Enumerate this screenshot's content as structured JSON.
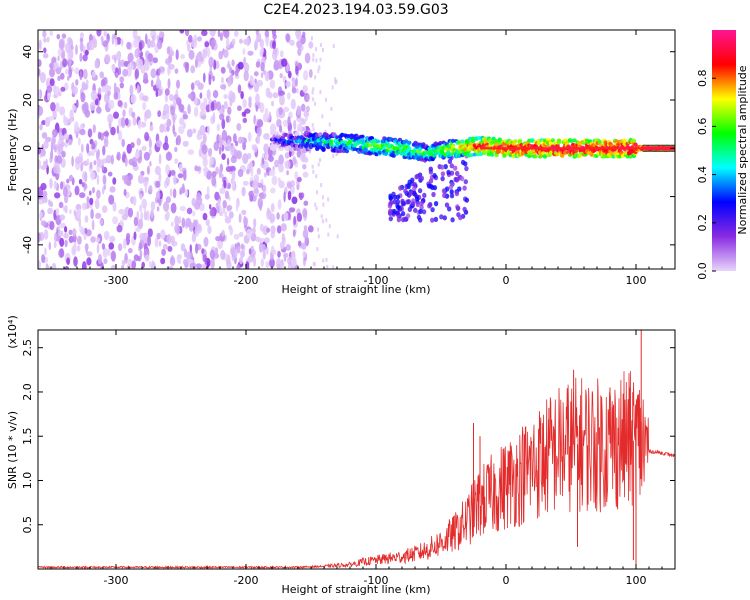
{
  "title": "C2E4.2023.194.03.59.G03",
  "chart_data": [
    {
      "type": "heatmap",
      "xlabel": "Height of straight line (km)",
      "ylabel": "Frequency (Hz)",
      "xlim": [
        -360,
        130
      ],
      "ylim": [
        -50,
        49
      ],
      "x_ticks": [
        -300,
        -200,
        -100,
        0,
        100
      ],
      "y_ticks": [
        -40,
        -20,
        0,
        20,
        40
      ],
      "colorbar": {
        "label": "Normalized spectral amplitude",
        "range": [
          0.0,
          1.0
        ],
        "ticks": [
          0.0,
          0.2,
          0.4,
          0.6,
          0.8
        ],
        "colormap": [
          "#e8d4fb",
          "#8a2be2",
          "#0000ff",
          "#00ffff",
          "#00ff00",
          "#ffff00",
          "#ff0000",
          "#ff1493"
        ]
      },
      "regions": {
        "noise_scatter": {
          "x_range": [
            -360,
            -150
          ],
          "frequency_range": [
            -50,
            49
          ],
          "amplitude_range": [
            0.0,
            0.3
          ]
        },
        "sparse_noise": {
          "x_range": [
            -150,
            -130
          ],
          "frequency_range": [
            -50,
            49
          ],
          "amplitude_range": [
            0.0,
            0.15
          ]
        },
        "signal_band": [
          {
            "x": -180,
            "frequency": 3,
            "amplitude": 0.2
          },
          {
            "x": -150,
            "frequency": 3,
            "amplitude": 0.45
          },
          {
            "x": -120,
            "frequency": 2,
            "amplitude": 0.55
          },
          {
            "x": -100,
            "frequency": 1,
            "amplitude": 0.6
          },
          {
            "x": -80,
            "frequency": 0,
            "amplitude": 0.6
          },
          {
            "x": -60,
            "frequency": -2,
            "amplitude": 0.55
          },
          {
            "x": -40,
            "frequency": 0,
            "amplitude": 0.7
          },
          {
            "x": -20,
            "frequency": 1,
            "amplitude": 0.85
          },
          {
            "x": 0,
            "frequency": 0,
            "amplitude": 0.9
          },
          {
            "x": 40,
            "frequency": 0,
            "amplitude": 0.95
          },
          {
            "x": 80,
            "frequency": 0,
            "amplitude": 0.95
          },
          {
            "x": 105,
            "frequency": 0,
            "amplitude": 1.0
          },
          {
            "x": 130,
            "frequency": 0,
            "amplitude": 1.0
          }
        ],
        "dispersion_tail": {
          "x_range": [
            -90,
            -30
          ],
          "frequency_range": [
            -30,
            0
          ],
          "amplitude_range": [
            0.1,
            0.3
          ]
        }
      }
    },
    {
      "type": "line",
      "xlabel": "Height of straight line (km)",
      "ylabel": "SNR (10 * v/v)",
      "y_multiplier": "(x10⁴)",
      "xlim": [
        -360,
        130
      ],
      "ylim": [
        0,
        2.7
      ],
      "x_ticks": [
        -300,
        -200,
        -100,
        0,
        100
      ],
      "y_ticks": [
        0.5,
        1.0,
        1.5,
        2.0,
        2.5
      ],
      "series_color": "#e32b2b",
      "series": [
        {
          "points": [
            {
              "x": -360,
              "y": 0.02
            },
            {
              "x": -300,
              "y": 0.02
            },
            {
              "x": -250,
              "y": 0.02
            },
            {
              "x": -200,
              "y": 0.02
            },
            {
              "x": -160,
              "y": 0.02
            },
            {
              "x": -140,
              "y": 0.03
            },
            {
              "x": -120,
              "y": 0.05
            },
            {
              "x": -110,
              "y": 0.08
            },
            {
              "x": -100,
              "y": 0.1
            },
            {
              "x": -90,
              "y": 0.12
            },
            {
              "x": -80,
              "y": 0.14
            },
            {
              "x": -70,
              "y": 0.17
            },
            {
              "x": -60,
              "y": 0.22
            },
            {
              "x": -50,
              "y": 0.3
            },
            {
              "x": -40,
              "y": 0.4
            },
            {
              "x": -30,
              "y": 0.55
            },
            {
              "x": -20,
              "y": 0.75
            },
            {
              "x": -10,
              "y": 0.85
            },
            {
              "x": 0,
              "y": 0.95
            },
            {
              "x": 10,
              "y": 1.05
            },
            {
              "x": 20,
              "y": 1.15
            },
            {
              "x": 30,
              "y": 1.25
            },
            {
              "x": 40,
              "y": 1.35
            },
            {
              "x": 50,
              "y": 1.4
            },
            {
              "x": 60,
              "y": 1.42
            },
            {
              "x": 70,
              "y": 1.4
            },
            {
              "x": 80,
              "y": 1.42
            },
            {
              "x": 90,
              "y": 1.45
            },
            {
              "x": 100,
              "y": 1.45
            },
            {
              "x": 105,
              "y": 1.4
            },
            {
              "x": 110,
              "y": 1.33
            },
            {
              "x": 120,
              "y": 1.31
            },
            {
              "x": 130,
              "y": 1.28
            }
          ],
          "spikes": [
            {
              "x": -25,
              "y": 1.65
            },
            {
              "x": -20,
              "y": 1.5
            },
            {
              "x": 33,
              "y": 1.82
            },
            {
              "x": 52,
              "y": 2.25
            },
            {
              "x": 55,
              "y": 0.25
            },
            {
              "x": 80,
              "y": 2.05
            },
            {
              "x": 95,
              "y": 2.05
            },
            {
              "x": 98,
              "y": 0.1
            },
            {
              "x": 104,
              "y": 2.7
            },
            {
              "x": 100,
              "y": 0.05
            }
          ]
        }
      ]
    }
  ]
}
